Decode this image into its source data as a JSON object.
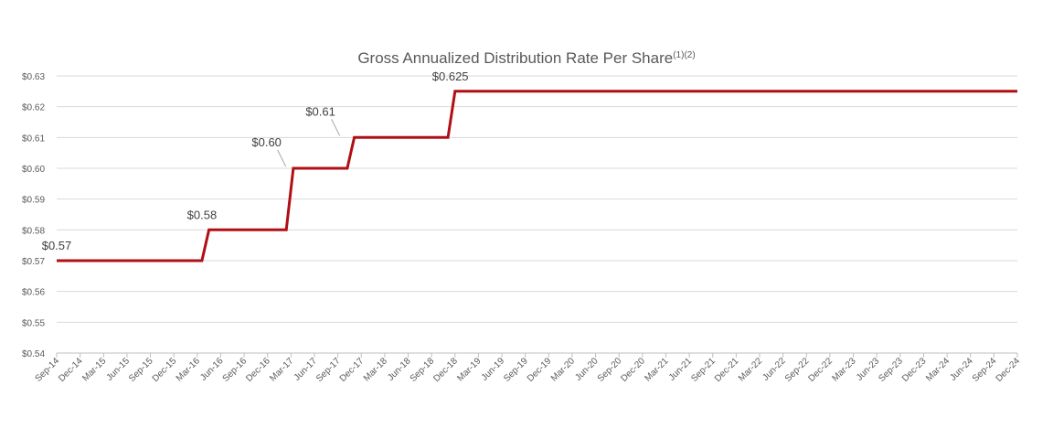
{
  "chart_data": {
    "type": "line",
    "title": "Gross Annualized Distribution Rate Per Share",
    "title_superscript": "(1)(2)",
    "xlabel": "",
    "ylabel": "",
    "ylim": [
      0.54,
      0.63
    ],
    "yticks": [
      {
        "value": 0.54,
        "label": "$0.54"
      },
      {
        "value": 0.55,
        "label": "$0.55"
      },
      {
        "value": 0.56,
        "label": "$0.56"
      },
      {
        "value": 0.57,
        "label": "$0.57"
      },
      {
        "value": 0.58,
        "label": "$0.58"
      },
      {
        "value": 0.59,
        "label": "$0.59"
      },
      {
        "value": 0.6,
        "label": "$0.60"
      },
      {
        "value": 0.61,
        "label": "$0.61"
      },
      {
        "value": 0.62,
        "label": "$0.62"
      },
      {
        "value": 0.63,
        "label": "$0.63"
      }
    ],
    "categories": [
      "Sep-14",
      "Dec-14",
      "Mar-15",
      "Jun-15",
      "Sep-15",
      "Dec-15",
      "Mar-16",
      "Jun-16",
      "Sep-16",
      "Dec-16",
      "Mar-17",
      "Jun-17",
      "Sep-17",
      "Dec-17",
      "Mar-18",
      "Jun-18",
      "Sep-18",
      "Dec-18",
      "Mar-19",
      "Jun-19",
      "Sep-19",
      "Dec-19",
      "Mar-20",
      "Jun-20",
      "Sep-20",
      "Dec-20",
      "Mar-21",
      "Jun-21",
      "Sep-21",
      "Dec-21",
      "Mar-22",
      "Jun-22",
      "Sep-22",
      "Dec-22",
      "Mar-23",
      "Jun-23",
      "Sep-23",
      "Dec-23",
      "Mar-24",
      "Jun-24",
      "Sep-24",
      "Dec-24"
    ],
    "grid": true,
    "legend": "none",
    "series": [
      {
        "name": "Gross Annualized Distribution Rate Per Share",
        "color": "#b00f14",
        "points": [
          {
            "x": 0,
            "y": 0.57
          },
          {
            "x": 6.2,
            "y": 0.57
          },
          {
            "x": 6.5,
            "y": 0.58
          },
          {
            "x": 9.8,
            "y": 0.58
          },
          {
            "x": 10.1,
            "y": 0.6
          },
          {
            "x": 12.4,
            "y": 0.6
          },
          {
            "x": 12.7,
            "y": 0.61
          },
          {
            "x": 16.7,
            "y": 0.61
          },
          {
            "x": 17.0,
            "y": 0.625
          },
          {
            "x": 41,
            "y": 0.625
          }
        ]
      }
    ],
    "data_labels": [
      {
        "text": "$0.57",
        "x": 0,
        "y": 0.57,
        "leader": false
      },
      {
        "text": "$0.58",
        "x": 6.2,
        "y": 0.58,
        "leader": false
      },
      {
        "text": "$0.60",
        "x": 9.7,
        "y": 0.6,
        "leader": true
      },
      {
        "text": "$0.61",
        "x": 12.0,
        "y": 0.61,
        "leader": true
      },
      {
        "text": "$0.625",
        "x": 16.8,
        "y": 0.625,
        "leader": false
      }
    ]
  }
}
